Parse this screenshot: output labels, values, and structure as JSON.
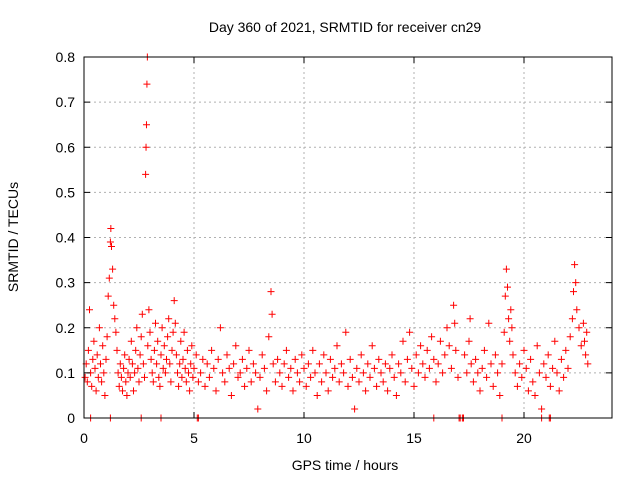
{
  "chart_data": {
    "type": "scatter",
    "title": "Day 360 of 2021, SRMTID for receiver cn29",
    "xlabel": "GPS time / hours",
    "ylabel": "SRMTID / TECUs",
    "xlim": [
      0,
      24
    ],
    "ylim": [
      0,
      0.8
    ],
    "xticks": [
      0,
      5,
      10,
      15,
      20
    ],
    "xtick_labels": [
      "0",
      "5",
      "10",
      "15",
      "20"
    ],
    "yticks": [
      0,
      0.1,
      0.2,
      0.3,
      0.4,
      0.5,
      0.6,
      0.7,
      0.8
    ],
    "ytick_labels": [
      "0",
      "0.1",
      "0.2",
      "0.3",
      "0.4",
      "0.5",
      "0.6",
      "0.7",
      "0.8"
    ],
    "grid": true,
    "marker": "+",
    "color": "#ff0000",
    "series": [
      {
        "name": "cn29",
        "points": [
          [
            0.05,
            0.09
          ],
          [
            0.1,
            0.12
          ],
          [
            0.15,
            0.08
          ],
          [
            0.2,
            0.15
          ],
          [
            0.25,
            0.24
          ],
          [
            0.3,
            0.1
          ],
          [
            0.35,
            0.07
          ],
          [
            0.4,
            0.13
          ],
          [
            0.45,
            0.17
          ],
          [
            0.5,
            0.11
          ],
          [
            0.55,
            0.06
          ],
          [
            0.6,
            0.14
          ],
          [
            0.65,
            0.09
          ],
          [
            0.7,
            0.2
          ],
          [
            0.75,
            0.12
          ],
          [
            0.8,
            0.08
          ],
          [
            0.85,
            0.16
          ],
          [
            0.9,
            0.1
          ],
          [
            0.95,
            0.05
          ],
          [
            1.0,
            0.13
          ],
          [
            1.05,
            0.18
          ],
          [
            1.1,
            0.27
          ],
          [
            1.15,
            0.31
          ],
          [
            1.2,
            0.39
          ],
          [
            1.22,
            0.42
          ],
          [
            1.25,
            0.38
          ],
          [
            1.3,
            0.33
          ],
          [
            1.35,
            0.25
          ],
          [
            1.4,
            0.22
          ],
          [
            1.45,
            0.19
          ],
          [
            1.5,
            0.15
          ],
          [
            1.55,
            0.1
          ],
          [
            1.6,
            0.07
          ],
          [
            1.65,
            0.12
          ],
          [
            1.7,
            0.09
          ],
          [
            1.75,
            0.06
          ],
          [
            1.8,
            0.11
          ],
          [
            1.85,
            0.14
          ],
          [
            1.9,
            0.08
          ],
          [
            1.95,
            0.05
          ],
          [
            2.0,
            0.1
          ],
          [
            2.05,
            0.13
          ],
          [
            2.1,
            0.09
          ],
          [
            2.15,
            0.17
          ],
          [
            2.2,
            0.12
          ],
          [
            2.25,
            0.06
          ],
          [
            2.3,
            0.1
          ],
          [
            2.35,
            0.15
          ],
          [
            2.4,
            0.2
          ],
          [
            2.45,
            0.11
          ],
          [
            2.5,
            0.08
          ],
          [
            2.55,
            0.14
          ],
          [
            2.6,
            0.18
          ],
          [
            2.65,
            0.23
          ],
          [
            2.7,
            0.12
          ],
          [
            2.75,
            0.09
          ],
          [
            2.8,
            0.54
          ],
          [
            2.82,
            0.6
          ],
          [
            2.84,
            0.65
          ],
          [
            2.86,
            0.74
          ],
          [
            2.88,
            0.8
          ],
          [
            2.9,
            0.16
          ],
          [
            2.95,
            0.24
          ],
          [
            3.0,
            0.19
          ],
          [
            3.05,
            0.13
          ],
          [
            3.1,
            0.1
          ],
          [
            3.15,
            0.08
          ],
          [
            3.2,
            0.15
          ],
          [
            3.25,
            0.21
          ],
          [
            3.3,
            0.12
          ],
          [
            3.35,
            0.17
          ],
          [
            3.4,
            0.09
          ],
          [
            3.45,
            0.07
          ],
          [
            3.5,
            0.14
          ],
          [
            3.55,
            0.2
          ],
          [
            3.6,
            0.11
          ],
          [
            3.65,
            0.16
          ],
          [
            3.7,
            0.1
          ],
          [
            3.75,
            0.13
          ],
          [
            3.8,
            0.18
          ],
          [
            3.85,
            0.22
          ],
          [
            3.9,
            0.12
          ],
          [
            3.95,
            0.08
          ],
          [
            4.0,
            0.15
          ],
          [
            4.05,
            0.19
          ],
          [
            4.1,
            0.26
          ],
          [
            4.15,
            0.21
          ],
          [
            4.2,
            0.14
          ],
          [
            4.25,
            0.1
          ],
          [
            4.3,
            0.07
          ],
          [
            4.35,
            0.12
          ],
          [
            4.4,
            0.17
          ],
          [
            4.45,
            0.09
          ],
          [
            4.5,
            0.13
          ],
          [
            4.55,
            0.19
          ],
          [
            4.6,
            0.11
          ],
          [
            4.65,
            0.08
          ],
          [
            4.7,
            0.15
          ],
          [
            4.75,
            0.1
          ],
          [
            4.8,
            0.06
          ],
          [
            4.85,
            0.12
          ],
          [
            4.9,
            0.16
          ],
          [
            4.95,
            0.09
          ],
          [
            5.0,
            0.11
          ],
          [
            5.1,
            0.14
          ],
          [
            5.2,
            0.08
          ],
          [
            5.3,
            0.1
          ],
          [
            5.4,
            0.13
          ],
          [
            5.5,
            0.07
          ],
          [
            5.6,
            0.12
          ],
          [
            5.7,
            0.09
          ],
          [
            5.8,
            0.15
          ],
          [
            5.9,
            0.11
          ],
          [
            6.0,
            0.06
          ],
          [
            6.1,
            0.13
          ],
          [
            6.2,
            0.2
          ],
          [
            6.3,
            0.1
          ],
          [
            6.4,
            0.08
          ],
          [
            6.5,
            0.14
          ],
          [
            6.6,
            0.11
          ],
          [
            6.7,
            0.05
          ],
          [
            6.8,
            0.12
          ],
          [
            6.9,
            0.16
          ],
          [
            7.0,
            0.09
          ],
          [
            7.1,
            0.1
          ],
          [
            7.2,
            0.13
          ],
          [
            7.3,
            0.07
          ],
          [
            7.4,
            0.11
          ],
          [
            7.5,
            0.15
          ],
          [
            7.6,
            0.08
          ],
          [
            7.7,
            0.12
          ],
          [
            7.8,
            0.1
          ],
          [
            7.9,
            0.02
          ],
          [
            8.0,
            0.09
          ],
          [
            8.1,
            0.14
          ],
          [
            8.2,
            0.11
          ],
          [
            8.3,
            0.06
          ],
          [
            8.4,
            0.18
          ],
          [
            8.5,
            0.28
          ],
          [
            8.55,
            0.23
          ],
          [
            8.6,
            0.12
          ],
          [
            8.7,
            0.08
          ],
          [
            8.8,
            0.13
          ],
          [
            8.9,
            0.1
          ],
          [
            9.0,
            0.07
          ],
          [
            9.1,
            0.12
          ],
          [
            9.2,
            0.15
          ],
          [
            9.3,
            0.09
          ],
          [
            9.4,
            0.11
          ],
          [
            9.5,
            0.06
          ],
          [
            9.6,
            0.13
          ],
          [
            9.7,
            0.1
          ],
          [
            9.8,
            0.08
          ],
          [
            9.9,
            0.14
          ],
          [
            10.0,
            0.11
          ],
          [
            10.1,
            0.07
          ],
          [
            10.2,
            0.12
          ],
          [
            10.3,
            0.09
          ],
          [
            10.4,
            0.15
          ],
          [
            10.5,
            0.1
          ],
          [
            10.6,
            0.05
          ],
          [
            10.7,
            0.12
          ],
          [
            10.8,
            0.08
          ],
          [
            10.9,
            0.14
          ],
          [
            11.0,
            0.1
          ],
          [
            11.1,
            0.06
          ],
          [
            11.2,
            0.13
          ],
          [
            11.3,
            0.09
          ],
          [
            11.4,
            0.11
          ],
          [
            11.5,
            0.16
          ],
          [
            11.6,
            0.08
          ],
          [
            11.7,
            0.12
          ],
          [
            11.8,
            0.1
          ],
          [
            11.9,
            0.19
          ],
          [
            12.0,
            0.07
          ],
          [
            12.1,
            0.13
          ],
          [
            12.2,
            0.09
          ],
          [
            12.3,
            0.02
          ],
          [
            12.4,
            0.11
          ],
          [
            12.5,
            0.08
          ],
          [
            12.6,
            0.14
          ],
          [
            12.7,
            0.1
          ],
          [
            12.8,
            0.06
          ],
          [
            12.9,
            0.12
          ],
          [
            13.0,
            0.09
          ],
          [
            13.1,
            0.16
          ],
          [
            13.2,
            0.11
          ],
          [
            13.3,
            0.07
          ],
          [
            13.4,
            0.13
          ],
          [
            13.5,
            0.1
          ],
          [
            13.6,
            0.08
          ],
          [
            13.7,
            0.12
          ],
          [
            13.8,
            0.06
          ],
          [
            13.9,
            0.11
          ],
          [
            14.0,
            0.14
          ],
          [
            14.1,
            0.09
          ],
          [
            14.2,
            0.05
          ],
          [
            14.3,
            0.12
          ],
          [
            14.4,
            0.1
          ],
          [
            14.5,
            0.17
          ],
          [
            14.6,
            0.08
          ],
          [
            14.7,
            0.13
          ],
          [
            14.8,
            0.19
          ],
          [
            14.9,
            0.11
          ],
          [
            15.0,
            0.07
          ],
          [
            15.1,
            0.14
          ],
          [
            15.2,
            0.1
          ],
          [
            15.3,
            0.16
          ],
          [
            15.4,
            0.12
          ],
          [
            15.5,
            0.09
          ],
          [
            15.6,
            0.15
          ],
          [
            15.7,
            0.11
          ],
          [
            15.8,
            0.18
          ],
          [
            15.9,
            0.13
          ],
          [
            16.0,
            0.08
          ],
          [
            16.1,
            0.12
          ],
          [
            16.2,
            0.17
          ],
          [
            16.3,
            0.1
          ],
          [
            16.4,
            0.14
          ],
          [
            16.5,
            0.2
          ],
          [
            16.6,
            0.16
          ],
          [
            16.7,
            0.11
          ],
          [
            16.8,
            0.25
          ],
          [
            16.85,
            0.21
          ],
          [
            16.9,
            0.15
          ],
          [
            17.0,
            0.09
          ],
          [
            17.1,
            0.0
          ],
          [
            17.2,
            0.0
          ],
          [
            17.3,
            0.14
          ],
          [
            17.4,
            0.1
          ],
          [
            17.5,
            0.17
          ],
          [
            17.55,
            0.22
          ],
          [
            17.6,
            0.12
          ],
          [
            17.7,
            0.08
          ],
          [
            17.8,
            0.13
          ],
          [
            17.9,
            0.1
          ],
          [
            18.0,
            0.06
          ],
          [
            18.1,
            0.11
          ],
          [
            18.2,
            0.15
          ],
          [
            18.3,
            0.09
          ],
          [
            18.4,
            0.21
          ],
          [
            18.5,
            0.12
          ],
          [
            18.6,
            0.07
          ],
          [
            18.7,
            0.14
          ],
          [
            18.8,
            0.1
          ],
          [
            18.9,
            0.05
          ],
          [
            19.0,
            0.12
          ],
          [
            19.1,
            0.19
          ],
          [
            19.15,
            0.27
          ],
          [
            19.2,
            0.33
          ],
          [
            19.25,
            0.29
          ],
          [
            19.3,
            0.22
          ],
          [
            19.35,
            0.17
          ],
          [
            19.4,
            0.24
          ],
          [
            19.45,
            0.2
          ],
          [
            19.5,
            0.14
          ],
          [
            19.6,
            0.1
          ],
          [
            19.7,
            0.07
          ],
          [
            19.8,
            0.12
          ],
          [
            19.9,
            0.09
          ],
          [
            20.0,
            0.15
          ],
          [
            20.1,
            0.11
          ],
          [
            20.2,
            0.06
          ],
          [
            20.3,
            0.13
          ],
          [
            20.4,
            0.08
          ],
          [
            20.5,
            0.05
          ],
          [
            20.6,
            0.16
          ],
          [
            20.7,
            0.1
          ],
          [
            20.8,
            0.02
          ],
          [
            20.9,
            0.12
          ],
          [
            21.0,
            0.09
          ],
          [
            21.1,
            0.14
          ],
          [
            21.2,
            0.07
          ],
          [
            21.3,
            0.11
          ],
          [
            21.4,
            0.17
          ],
          [
            21.5,
            0.1
          ],
          [
            21.6,
            0.06
          ],
          [
            21.7,
            0.13
          ],
          [
            21.8,
            0.09
          ],
          [
            21.9,
            0.15
          ],
          [
            22.0,
            0.11
          ],
          [
            22.1,
            0.18
          ],
          [
            22.2,
            0.22
          ],
          [
            22.25,
            0.28
          ],
          [
            22.3,
            0.34
          ],
          [
            22.35,
            0.3
          ],
          [
            22.4,
            0.24
          ],
          [
            22.5,
            0.2
          ],
          [
            22.6,
            0.16
          ],
          [
            22.7,
            0.21
          ],
          [
            22.75,
            0.17
          ],
          [
            22.8,
            0.14
          ],
          [
            22.85,
            0.19
          ],
          [
            22.9,
            0.12
          ],
          [
            0.3,
            0.0
          ],
          [
            1.2,
            0.0
          ],
          [
            2.6,
            0.0
          ],
          [
            3.5,
            0.0
          ],
          [
            5.15,
            0.0
          ],
          [
            5.2,
            0.0
          ],
          [
            15.9,
            0.0
          ],
          [
            17.05,
            0.0
          ],
          [
            17.25,
            0.0
          ],
          [
            19.0,
            0.0
          ],
          [
            20.8,
            0.0
          ],
          [
            21.15,
            0.0
          ],
          [
            21.2,
            0.0
          ]
        ]
      }
    ]
  }
}
